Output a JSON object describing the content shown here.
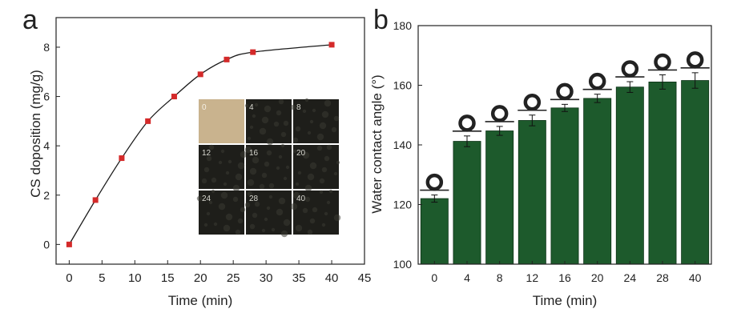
{
  "colors": {
    "line": "#1a1a1a",
    "marker": "#d42a2a",
    "bar": "#1d5a2c",
    "bar_edge": "#0e3318",
    "inset_first": "#c9b38e",
    "inset_dark": "#1e1e1a"
  },
  "panel_a": {
    "letter": "a",
    "inset_labels": [
      "0",
      "4",
      "8",
      "12",
      "16",
      "20",
      "24",
      "28",
      "40"
    ]
  },
  "panel_b": {
    "letter": "b",
    "droplet_icon_name": "water-droplet-icon"
  },
  "chart_data": [
    {
      "type": "line",
      "x": [
        0,
        4,
        8,
        12,
        16,
        20,
        24,
        28,
        40
      ],
      "y": [
        0,
        1.8,
        3.5,
        5.0,
        6.0,
        6.9,
        7.5,
        7.8,
        8.1
      ],
      "xlabel": "Time (min)",
      "ylabel": "CS doposition (mg/g)",
      "xlim": [
        -2,
        45
      ],
      "ylim": [
        -0.8,
        9.2
      ],
      "xticks": [
        0,
        5,
        10,
        15,
        20,
        25,
        30,
        35,
        40,
        45
      ],
      "yticks": [
        0,
        2,
        4,
        6,
        8
      ],
      "grid": false
    },
    {
      "type": "bar",
      "categories": [
        "0",
        "4",
        "8",
        "12",
        "16",
        "20",
        "24",
        "28",
        "40"
      ],
      "values": [
        122,
        141.2,
        144.7,
        148.2,
        152.4,
        155.6,
        159.4,
        161.1,
        161.6
      ],
      "errors": [
        1.2,
        1.8,
        1.5,
        1.8,
        1.2,
        1.4,
        1.8,
        2.4,
        2.6
      ],
      "xlabel": "Time (min)",
      "ylabel": "Water contact angle (°)",
      "ylim": [
        100,
        180
      ],
      "yticks": [
        100,
        120,
        140,
        160,
        180
      ],
      "grid": false
    }
  ]
}
